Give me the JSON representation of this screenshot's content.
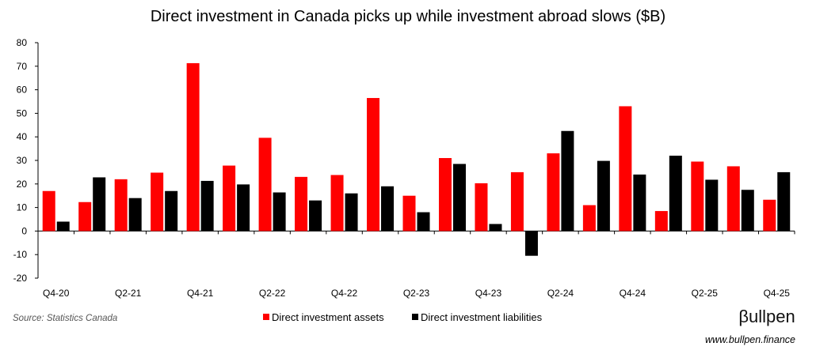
{
  "chart_data": {
    "type": "bar",
    "title": "Direct investment in Canada picks up while investment abroad slows ($B)",
    "categories": [
      "Q4-20",
      "Q1-21",
      "Q2-21",
      "Q3-21",
      "Q4-21",
      "Q1-22",
      "Q2-22",
      "Q3-22",
      "Q4-22",
      "Q1-23",
      "Q2-23",
      "Q3-23",
      "Q4-23",
      "Q1-24",
      "Q2-24",
      "Q3-24",
      "Q4-24",
      "Q1-25",
      "Q2-25",
      "Q3-25",
      "Q4-25"
    ],
    "tick_labels": [
      "Q4-20",
      "",
      "Q2-21",
      "",
      "Q4-21",
      "",
      "Q2-22",
      "",
      "Q4-22",
      "",
      "Q2-23",
      "",
      "Q4-23",
      "",
      "Q2-24",
      "",
      "Q4-24",
      "",
      "Q2-25",
      "",
      "Q4-25"
    ],
    "series": [
      {
        "name": "Direct investment assets",
        "color": "#ff0000",
        "values": [
          17.0,
          12.3,
          22.0,
          24.8,
          71.3,
          27.8,
          39.6,
          23.0,
          23.8,
          56.5,
          15.0,
          31.0,
          20.3,
          25.0,
          33.0,
          11.0,
          53.0,
          8.5,
          29.5,
          27.5,
          13.3
        ]
      },
      {
        "name": "Direct investment liabilities",
        "color": "#000000",
        "values": [
          4.0,
          22.8,
          14.0,
          17.0,
          21.3,
          19.8,
          16.4,
          13.0,
          16.0,
          19.0,
          8.0,
          28.5,
          3.0,
          -10.5,
          42.5,
          29.8,
          24.0,
          32.0,
          21.8,
          17.5,
          25.0
        ]
      }
    ],
    "y_ticks": [
      80,
      70,
      60,
      50,
      40,
      30,
      20,
      10,
      0,
      -10,
      -20
    ],
    "ylim": [
      -20,
      80
    ],
    "xlabel": "",
    "ylabel": "",
    "legend_position": "bottom-center",
    "grid": false
  },
  "source": "Source: Statistics Canada",
  "brand": {
    "name": "βullpen",
    "url": "www.bullpen.finance"
  }
}
